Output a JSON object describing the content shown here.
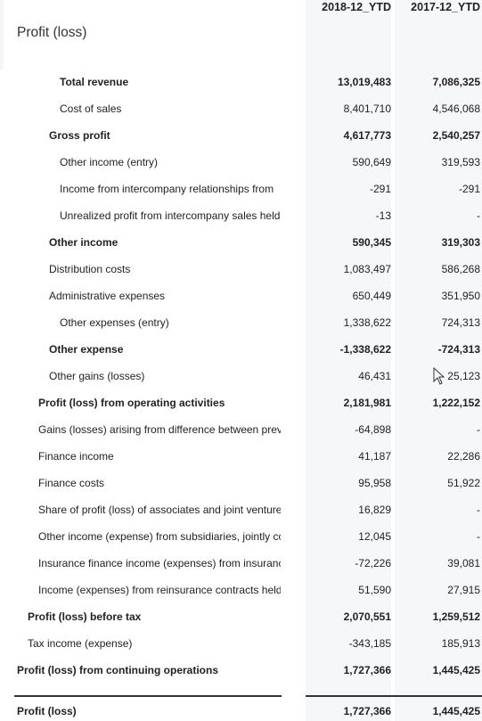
{
  "page": {
    "title": "Profit (loss)"
  },
  "columns": [
    "2018-12_YTD",
    "2017-12_YTD"
  ],
  "rows": [
    {
      "label": "Total revenue",
      "indent": 4,
      "bold": true,
      "v1": "13,019,483",
      "v2": "7,086,325"
    },
    {
      "label": "Cost of sales",
      "indent": 4,
      "bold": false,
      "v1": "8,401,710",
      "v2": "4,546,068"
    },
    {
      "label": "Gross profit",
      "indent": 3,
      "bold": true,
      "v1": "4,617,773",
      "v2": "2,540,257"
    },
    {
      "label": "Other income (entry)",
      "indent": 4,
      "bold": false,
      "v1": "590,649",
      "v2": "319,593"
    },
    {
      "label": "Income from intercompany relationships from",
      "indent": 4,
      "bold": false,
      "v1": "-291",
      "v2": "-291"
    },
    {
      "label": "Unrealized profit from intercompany sales held",
      "indent": 4,
      "bold": false,
      "v1": "-13",
      "v2": "-"
    },
    {
      "label": "Other income",
      "indent": 3,
      "bold": true,
      "v1": "590,345",
      "v2": "319,303"
    },
    {
      "label": "Distribution costs",
      "indent": 3,
      "bold": false,
      "v1": "1,083,497",
      "v2": "586,268"
    },
    {
      "label": "Administrative expenses",
      "indent": 3,
      "bold": false,
      "v1": "650,449",
      "v2": "351,950"
    },
    {
      "label": "Other expenses (entry)",
      "indent": 4,
      "bold": false,
      "v1": "1,338,622",
      "v2": "724,313"
    },
    {
      "label": "Other expense",
      "indent": 3,
      "bold": true,
      "v1": "-1,338,622",
      "v2": "-724,313"
    },
    {
      "label": "Other gains (losses)",
      "indent": 3,
      "bold": false,
      "v1": "46,431",
      "v2": "25,123"
    },
    {
      "label": "Profit (loss) from operating activities",
      "indent": 2,
      "bold": true,
      "v1": "2,181,981",
      "v2": "1,222,152"
    },
    {
      "label": "Gains (losses) arising from difference between previ",
      "indent": 2,
      "bold": false,
      "v1": "-64,898",
      "v2": "-"
    },
    {
      "label": "Finance income",
      "indent": 2,
      "bold": false,
      "v1": "41,187",
      "v2": "22,286"
    },
    {
      "label": "Finance costs",
      "indent": 2,
      "bold": false,
      "v1": "95,958",
      "v2": "51,922"
    },
    {
      "label": "Share of profit (loss) of associates and joint ventures",
      "indent": 2,
      "bold": false,
      "v1": "16,829",
      "v2": "-"
    },
    {
      "label": "Other income (expense) from subsidiaries, jointly cc",
      "indent": 2,
      "bold": false,
      "v1": "12,045",
      "v2": "-"
    },
    {
      "label": "Insurance finance income (expenses) from insuranc",
      "indent": 2,
      "bold": false,
      "v1": "-72,226",
      "v2": "39,081"
    },
    {
      "label": "Income (expenses) from reinsurance contracts held,",
      "indent": 2,
      "bold": false,
      "v1": "51,590",
      "v2": "27,915"
    },
    {
      "label": "Profit (loss) before tax",
      "indent": 1,
      "bold": true,
      "v1": "2,070,551",
      "v2": "1,259,512"
    },
    {
      "label": "Tax income (expense)",
      "indent": 1,
      "bold": false,
      "v1": "-343,185",
      "v2": "185,913"
    },
    {
      "label": "Profit (loss) from continuing operations",
      "indent": 0,
      "bold": true,
      "v1": "1,727,366",
      "v2": "1,445,425"
    }
  ],
  "total": {
    "label": "Profit (loss)",
    "v1": "1,727,366",
    "v2": "1,445,425"
  },
  "cursor": {
    "icon": "mouse-pointer-icon"
  }
}
